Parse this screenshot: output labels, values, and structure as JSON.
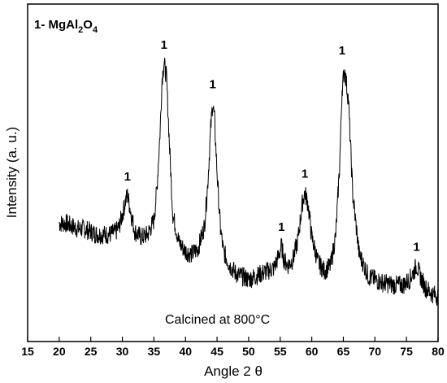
{
  "chart_data": {
    "type": "line",
    "title": "",
    "legend_text": "1- MgAl",
    "legend_sub1": "2",
    "legend_mid": "O",
    "legend_sub2": "4",
    "annotation": "Calcined at 800°C",
    "xlabel": "Angle 2 θ",
    "ylabel": "Intensity (a. u.)",
    "xlim": [
      15,
      80
    ],
    "ylim": [
      0,
      100
    ],
    "x_ticks": [
      "15",
      "20",
      "25",
      "30",
      "35",
      "40",
      "45",
      "50",
      "55",
      "60",
      "65",
      "70",
      "75",
      "80"
    ],
    "series": [
      {
        "color": "#000000",
        "x": [
          20,
          21,
          22,
          23,
          24,
          25,
          26,
          27,
          28,
          29,
          29.5,
          30,
          30.5,
          30.8,
          31,
          31.5,
          32,
          33,
          34,
          35,
          35.5,
          36,
          36.3,
          36.6,
          37,
          37.5,
          38,
          39,
          40,
          41,
          42,
          43,
          43.5,
          44,
          44.3,
          44.6,
          45,
          45.5,
          46,
          47,
          48,
          49,
          50,
          51,
          52,
          53,
          54,
          54.7,
          55.2,
          55.6,
          56.2,
          57,
          57.8,
          58.5,
          58.9,
          59.4,
          60,
          61,
          62,
          63,
          63.8,
          64.4,
          64.8,
          65.2,
          65.8,
          66.5,
          67.5,
          69,
          71,
          73,
          74.5,
          75.5,
          76.2,
          76.6,
          77.2,
          78,
          79,
          80
        ],
        "y": [
          32,
          32,
          31,
          30,
          30,
          29,
          28,
          28,
          28,
          29,
          31,
          35,
          40,
          42,
          40,
          34,
          29,
          27,
          28,
          33,
          45,
          66,
          84,
          89,
          84,
          58,
          35,
          25,
          22,
          21,
          23,
          31,
          45,
          66,
          75,
          69,
          50,
          31,
          22,
          17,
          14,
          13,
          12,
          13,
          14,
          15,
          16,
          20,
          24,
          19,
          17,
          19,
          26,
          39,
          43,
          39,
          27,
          18,
          15,
          17,
          28,
          52,
          80,
          87,
          76,
          42,
          21,
          13,
          11,
          10,
          10,
          12,
          15,
          17,
          13,
          9,
          7,
          6
        ]
      }
    ],
    "peaks": [
      {
        "x": 30.8,
        "y": 42,
        "label": "1"
      },
      {
        "x": 36.6,
        "y": 89,
        "label": "1"
      },
      {
        "x": 44.3,
        "y": 75,
        "label": "1"
      },
      {
        "x": 55.2,
        "y": 24,
        "label": "1"
      },
      {
        "x": 58.9,
        "y": 43,
        "label": "1"
      },
      {
        "x": 64.8,
        "y": 87,
        "label": "1"
      },
      {
        "x": 76.6,
        "y": 17,
        "label": "1"
      }
    ]
  }
}
